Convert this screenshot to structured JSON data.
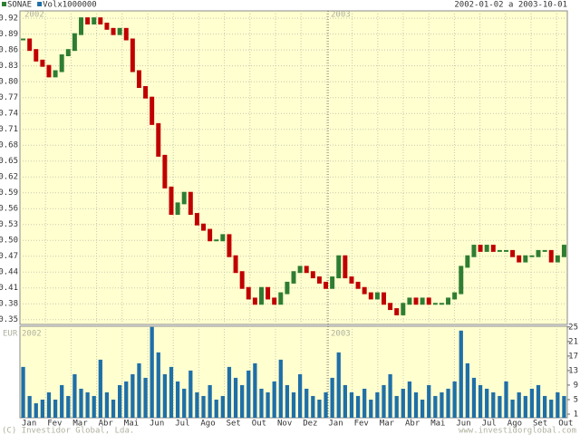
{
  "header": {
    "range": "2002-01-02 a 2003-10-01"
  },
  "footer": {
    "copyright": "(C) Investidor Global, Lda.",
    "site": "www.investidorglobal.com"
  },
  "annotations": {
    "currency": "EUR",
    "year_1": "2002",
    "year_2": "2003"
  },
  "months": [
    "Jan",
    "Fev",
    "Mar",
    "Abr",
    "Mai",
    "Jun",
    "Jul",
    "Ago",
    "Set",
    "Out",
    "Nov",
    "Dez",
    "Jan",
    "Fev",
    "Mar",
    "Abr",
    "Mai",
    "Jun",
    "Jul",
    "Ago",
    "Set",
    "Out"
  ],
  "chart_data": [
    {
      "type": "candlestick",
      "series": [
        {
          "name": "SONAE",
          "color": "#2e7d32",
          "down_color": "#c00000",
          "values": [
            0.88,
            0.86,
            0.84,
            0.83,
            0.81,
            0.82,
            0.85,
            0.86,
            0.89,
            0.92,
            0.91,
            0.92,
            0.91,
            0.9,
            0.89,
            0.9,
            0.88,
            0.82,
            0.79,
            0.77,
            0.72,
            0.66,
            0.6,
            0.55,
            0.57,
            0.59,
            0.55,
            0.53,
            0.52,
            0.5,
            0.5,
            0.51,
            0.47,
            0.44,
            0.41,
            0.39,
            0.38,
            0.41,
            0.39,
            0.38,
            0.4,
            0.42,
            0.44,
            0.45,
            0.44,
            0.43,
            0.42,
            0.41,
            0.43,
            0.47,
            0.43,
            0.42,
            0.41,
            0.4,
            0.39,
            0.4,
            0.38,
            0.37,
            0.36,
            0.38,
            0.39,
            0.38,
            0.39,
            0.38,
            0.38,
            0.38,
            0.39,
            0.4,
            0.45,
            0.47,
            0.49,
            0.48,
            0.49,
            0.48,
            0.48,
            0.48,
            0.47,
            0.46,
            0.47,
            0.47,
            0.48,
            0.48,
            0.46,
            0.47,
            0.49
          ]
        }
      ],
      "ylim": [
        0.341,
        0.934
      ],
      "yticks": [
        0.92,
        0.89,
        0.86,
        0.83,
        {
          "value": 0.8,
          "label": "0.80"
        },
        0.77,
        0.74,
        0.71,
        0.68,
        0.65,
        0.62,
        0.59,
        0.56,
        0.53,
        {
          "value": 0.5,
          "label": "0.50"
        },
        0.47,
        0.44,
        0.41,
        0.38,
        0.35
      ],
      "grid": true
    },
    {
      "type": "bar",
      "series": [
        {
          "name": "Volx1000000",
          "color": "#1f6fa8",
          "values": [
            14,
            6,
            4,
            5,
            7,
            5,
            9,
            6,
            12,
            8,
            7,
            6,
            16,
            7,
            5,
            9,
            10,
            12,
            15,
            11,
            25,
            18,
            12,
            14,
            10,
            8,
            13,
            7,
            6,
            9,
            5,
            6,
            14,
            11,
            9,
            13,
            15,
            8,
            7,
            10,
            16,
            9,
            7,
            12,
            8,
            6,
            5,
            7,
            11,
            18,
            9,
            7,
            6,
            8,
            5,
            7,
            9,
            12,
            6,
            8,
            10,
            7,
            5,
            9,
            6,
            7,
            8,
            10,
            24,
            15,
            11,
            9,
            8,
            7,
            6,
            10,
            5,
            7,
            6,
            8,
            9,
            6,
            5,
            7,
            6
          ]
        }
      ],
      "ylim": [
        0,
        25.2
      ],
      "yticks": [
        1,
        5,
        9,
        13,
        17,
        21,
        25
      ]
    }
  ]
}
